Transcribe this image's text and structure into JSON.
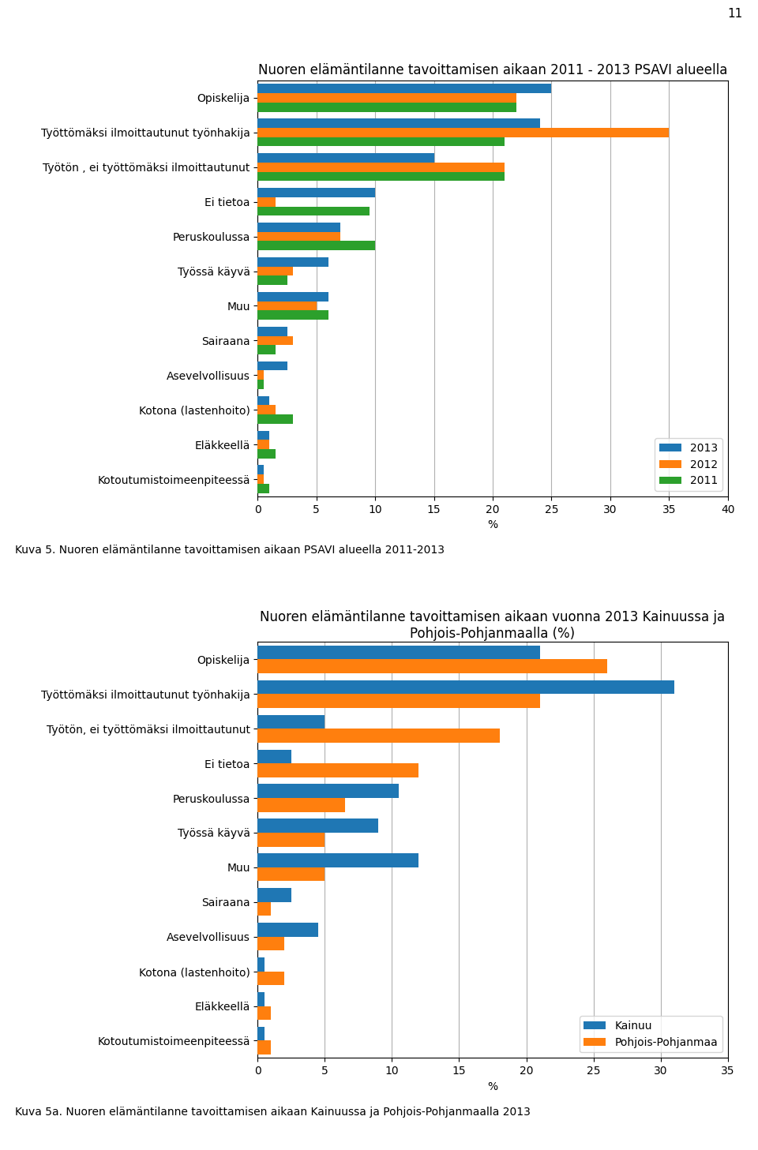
{
  "page_number": "11",
  "chart_data": [
    {
      "type": "bar",
      "orientation": "horizontal",
      "title": "Nuoren elämäntilanne tavoittamisen aikaan 2011 - 2013 PSAVI alueella",
      "caption": "Kuva 5. Nuoren elämäntilanne tavoittamisen aikaan PSAVI alueella 2011-2013",
      "x_label": "%",
      "categories": [
        "Opiskelija",
        "Työttömäksi ilmoittautunut työnhakija",
        "Työtön , ei työttömäksi ilmoittautunut",
        "Ei tietoa",
        "Peruskoulussa",
        "Työssä käyvä",
        "Muu",
        "Sairaana",
        "Asevelvollisuus",
        "Kotona (lastenhoito)",
        "Eläkkeellä",
        "Kotoutumistoimeenpiteessä"
      ],
      "series": [
        {
          "name": "2013",
          "values": [
            25,
            24,
            15,
            10,
            7,
            6,
            6,
            2.5,
            2.5,
            1,
            1,
            0.5
          ]
        },
        {
          "name": "2012",
          "values": [
            22,
            35,
            21,
            1.5,
            7,
            3,
            5,
            3,
            0.5,
            1.5,
            1,
            0.5
          ]
        },
        {
          "name": "2011",
          "values": [
            22,
            21,
            21,
            9.5,
            10,
            2.5,
            6,
            1.5,
            0.5,
            3,
            1.5,
            1
          ]
        }
      ],
      "xlim": [
        0,
        40
      ],
      "xticks": [
        0,
        5,
        10,
        15,
        20,
        25,
        30,
        35,
        40
      ],
      "grid": true,
      "legend": "lower right"
    },
    {
      "type": "bar",
      "orientation": "horizontal",
      "title": "Nuoren elämäntilanne tavoittamisen aikaan vuonna 2013 Kainuussa ja\nPohjois-Pohjanmaalla (%)",
      "caption": "Kuva 5a. Nuoren elämäntilanne tavoittamisen aikaan Kainuussa ja Pohjois-Pohjanmaalla 2013",
      "x_label": "%",
      "categories": [
        "Opiskelija",
        "Työttömäksi ilmoittautunut työnhakija",
        "Työtön, ei työttömäksi ilmoittautunut",
        "Ei tietoa",
        "Peruskoulussa",
        "Työssä käyvä",
        "Muu",
        "Sairaana",
        "Asevelvollisuus",
        "Kotona (lastenhoito)",
        "Eläkkeellä",
        "Kotoutumistoimeenpiteessä"
      ],
      "series": [
        {
          "name": "Kainuu",
          "values": [
            21,
            31,
            5,
            2.5,
            10.5,
            9,
            12,
            2.5,
            4.5,
            0.5,
            0.5,
            0.5
          ]
        },
        {
          "name": "Pohjois-Pohjanmaa",
          "values": [
            26,
            21,
            18,
            12,
            6.5,
            5,
            5,
            1,
            2,
            2,
            1,
            1
          ]
        }
      ],
      "xlim": [
        0,
        35
      ],
      "xticks": [
        0,
        5,
        10,
        15,
        20,
        25,
        30,
        35
      ],
      "grid": true,
      "legend": "lower right"
    }
  ]
}
